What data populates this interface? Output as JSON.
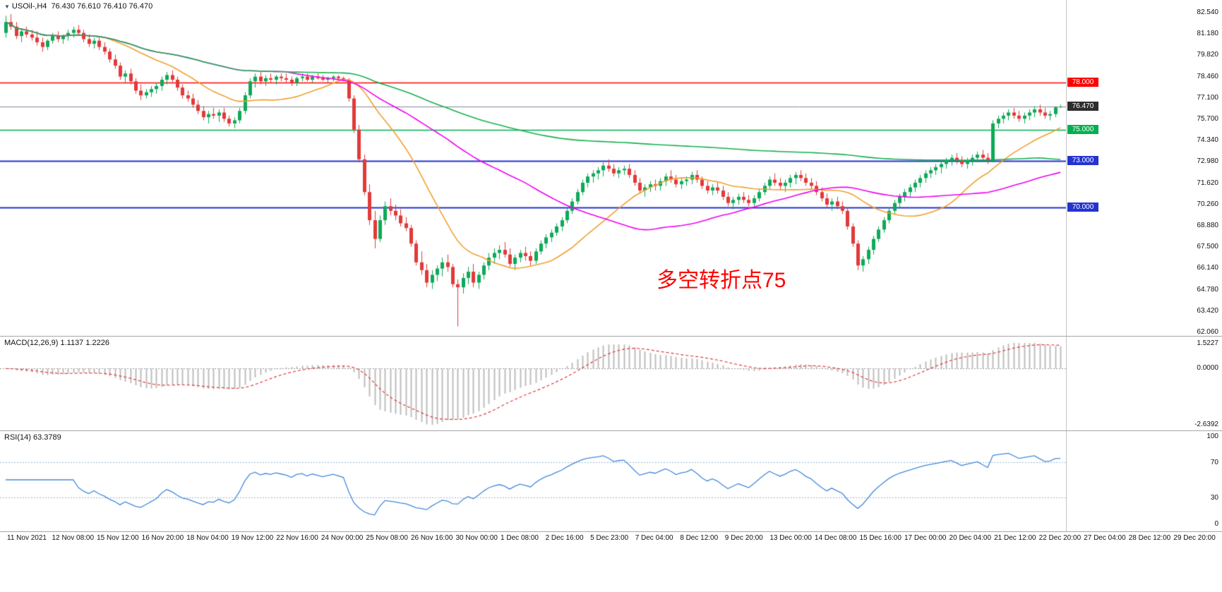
{
  "header": {
    "symbol": "USOil-,H4",
    "ohlc": "76.430 76.610 76.410 76.470"
  },
  "colors": {
    "background": "#ffffff",
    "bull": "#0fa958",
    "bear": "#e23a3a",
    "macd_hist": "#bdbdbd",
    "macd_signal": "#e03a3a",
    "rsi_line": "#4289d9",
    "bid_line": "#7d8b97",
    "axis_text": "#111111",
    "separator": "#a6a6a6"
  },
  "chart_data": {
    "type": "candlestick",
    "title": "USOil-,H4",
    "symbol": "USOil-",
    "timeframe": "H4",
    "current_ohlc": {
      "open": "76.430",
      "high": "76.610",
      "low": "76.410",
      "close": "76.470"
    },
    "y_axis": {
      "top_value": 82.54,
      "bottom_value": 62.06,
      "labels": [
        "82.540",
        "81.180",
        "79.820",
        "78.460",
        "77.100",
        "75.700",
        "74.340",
        "72.980",
        "71.620",
        "70.260",
        "68.880",
        "67.500",
        "66.140",
        "64.780",
        "63.420",
        "62.060"
      ]
    },
    "x_axis": {
      "labels": [
        "11 Nov 2021",
        "12 Nov 08:00",
        "15 Nov 12:00",
        "16 Nov 20:00",
        "18 Nov 04:00",
        "19 Nov 12:00",
        "22 Nov 16:00",
        "24 Nov 00:00",
        "25 Nov 08:00",
        "26 Nov 16:00",
        "30 Nov 00:00",
        "1 Dec 08:00",
        "2 Dec 16:00",
        "5 Dec 23:00",
        "7 Dec 04:00",
        "8 Dec 12:00",
        "9 Dec 20:00",
        "13 Dec 00:00",
        "14 Dec 08:00",
        "15 Dec 16:00",
        "17 Dec 00:00",
        "20 Dec 04:00",
        "21 Dec 12:00",
        "22 Dec 20:00",
        "27 Dec 04:00",
        "28 Dec 12:00",
        "29 Dec 20:00"
      ]
    },
    "horizontal_levels": [
      {
        "price": 78.0,
        "label": "78.000",
        "color": "#ff0000",
        "width": 1.6
      },
      {
        "price": 75.0,
        "label": "75.000",
        "color": "#00b050",
        "width": 1.6
      },
      {
        "price": 73.0,
        "label": "73.000",
        "color": "#2433cf",
        "width": 1.8
      },
      {
        "price": 70.0,
        "label": "70.000",
        "color": "#2433cf",
        "width": 1.8
      }
    ],
    "bid_line": {
      "price": 76.47,
      "label": "76.470",
      "color": "#7d8b97",
      "badge_color": "#2d2d2d"
    },
    "moving_averages": [
      {
        "period": 20,
        "color": "#f0a030",
        "name": "fast-ma-orange"
      },
      {
        "period": 55,
        "color": "#f000f0",
        "name": "mid-ma-magenta"
      },
      {
        "period": 200,
        "color": "#17b04f",
        "name": "slow-ma-green"
      }
    ],
    "indicators": {
      "macd": {
        "label_text": "MACD(12,26,9) 1.1137 1.2226",
        "fast": 12,
        "slow": 26,
        "signal": 9,
        "values": "1.1137 1.2226",
        "axis_labels": [
          "1.5227",
          "0.0000",
          "-2.6392"
        ]
      },
      "rsi": {
        "label_text": "RSI(14) 63.3789",
        "period": 14,
        "value": "63.3789",
        "axis_labels": [
          "100",
          "70",
          "30",
          "0"
        ],
        "levels": [
          70,
          30
        ]
      }
    },
    "annotation": {
      "text": "多空转折点75",
      "color": "#ff0000"
    },
    "candles": [
      [
        81.2,
        82.3,
        80.9,
        81.9
      ],
      [
        81.9,
        82.4,
        81.4,
        81.6
      ],
      [
        81.6,
        81.9,
        80.8,
        81.0
      ],
      [
        81.0,
        81.5,
        80.6,
        81.3
      ],
      [
        81.3,
        81.6,
        80.9,
        81.1
      ],
      [
        81.1,
        81.4,
        80.7,
        80.9
      ],
      [
        80.9,
        81.3,
        80.4,
        80.6
      ],
      [
        80.6,
        80.9,
        80.0,
        80.3
      ],
      [
        80.3,
        80.8,
        80.1,
        80.7
      ],
      [
        80.7,
        81.2,
        80.5,
        81.0
      ],
      [
        81.0,
        81.3,
        80.6,
        80.8
      ],
      [
        80.8,
        81.1,
        80.5,
        81.0
      ],
      [
        81.0,
        81.4,
        80.7,
        81.2
      ],
      [
        81.2,
        81.6,
        80.9,
        81.4
      ],
      [
        81.4,
        81.7,
        81.0,
        81.2
      ],
      [
        81.2,
        81.4,
        80.6,
        80.8
      ],
      [
        80.8,
        81.1,
        80.3,
        80.5
      ],
      [
        80.5,
        80.9,
        80.2,
        80.7
      ],
      [
        80.7,
        80.9,
        80.1,
        80.3
      ],
      [
        80.3,
        80.6,
        79.8,
        80.0
      ],
      [
        80.0,
        80.2,
        79.3,
        79.5
      ],
      [
        79.5,
        79.8,
        78.9,
        79.1
      ],
      [
        79.1,
        79.3,
        78.2,
        78.4
      ],
      [
        78.4,
        78.8,
        78.0,
        78.6
      ],
      [
        78.6,
        78.9,
        77.9,
        78.1
      ],
      [
        78.1,
        78.3,
        77.3,
        77.5
      ],
      [
        77.5,
        77.9,
        76.9,
        77.2
      ],
      [
        77.2,
        77.6,
        77.0,
        77.4
      ],
      [
        77.4,
        77.8,
        77.1,
        77.6
      ],
      [
        77.6,
        78.0,
        77.3,
        77.8
      ],
      [
        77.8,
        78.4,
        77.5,
        78.2
      ],
      [
        78.2,
        78.7,
        77.9,
        78.5
      ],
      [
        78.5,
        78.8,
        78.0,
        78.2
      ],
      [
        78.2,
        78.4,
        77.5,
        77.7
      ],
      [
        77.7,
        77.9,
        77.0,
        77.2
      ],
      [
        77.2,
        77.5,
        76.8,
        77.0
      ],
      [
        77.0,
        77.3,
        76.4,
        76.6
      ],
      [
        76.6,
        76.9,
        76.0,
        76.2
      ],
      [
        76.2,
        76.5,
        75.6,
        75.8
      ],
      [
        75.8,
        76.2,
        75.4,
        76.0
      ],
      [
        76.0,
        76.4,
        75.7,
        75.9
      ],
      [
        75.9,
        76.3,
        75.5,
        76.1
      ],
      [
        76.1,
        76.4,
        75.5,
        75.7
      ],
      [
        75.7,
        75.9,
        75.2,
        75.4
      ],
      [
        75.4,
        75.8,
        75.1,
        75.6
      ],
      [
        75.6,
        76.4,
        75.4,
        76.2
      ],
      [
        76.2,
        77.4,
        76.0,
        77.2
      ],
      [
        77.2,
        78.3,
        77.0,
        78.1
      ],
      [
        78.1,
        78.6,
        77.7,
        78.4
      ],
      [
        78.4,
        78.7,
        77.9,
        78.1
      ],
      [
        78.1,
        78.5,
        77.8,
        78.3
      ],
      [
        78.3,
        78.6,
        78.0,
        78.2
      ],
      [
        78.2,
        78.5,
        77.9,
        78.4
      ],
      [
        78.4,
        78.6,
        78.1,
        78.3
      ],
      [
        78.3,
        78.6,
        78.0,
        78.2
      ],
      [
        78.2,
        78.4,
        77.8,
        78.0
      ],
      [
        78.0,
        78.4,
        77.8,
        78.3
      ],
      [
        78.3,
        78.6,
        78.1,
        78.4
      ],
      [
        78.4,
        78.6,
        78.1,
        78.2
      ],
      [
        78.2,
        78.5,
        78.0,
        78.4
      ],
      [
        78.4,
        78.6,
        78.2,
        78.3
      ],
      [
        78.3,
        78.5,
        78.1,
        78.2
      ],
      [
        78.2,
        78.4,
        78.0,
        78.3
      ],
      [
        78.3,
        78.5,
        78.1,
        78.4
      ],
      [
        78.4,
        78.5,
        78.2,
        78.3
      ],
      [
        78.3,
        78.4,
        78.1,
        78.2
      ],
      [
        78.2,
        78.3,
        76.8,
        77.0
      ],
      [
        77.0,
        77.2,
        74.8,
        75.0
      ],
      [
        75.0,
        75.3,
        72.9,
        73.1
      ],
      [
        73.1,
        73.4,
        70.8,
        71.0
      ],
      [
        71.0,
        71.5,
        68.9,
        69.2
      ],
      [
        69.2,
        69.8,
        67.4,
        68.0
      ],
      [
        68.0,
        69.5,
        67.8,
        69.2
      ],
      [
        69.2,
        70.4,
        68.9,
        70.1
      ],
      [
        70.1,
        70.6,
        69.5,
        69.8
      ],
      [
        69.8,
        70.2,
        69.2,
        69.5
      ],
      [
        69.5,
        69.9,
        68.8,
        69.0
      ],
      [
        69.0,
        69.4,
        68.5,
        68.7
      ],
      [
        68.7,
        68.9,
        67.5,
        67.7
      ],
      [
        67.7,
        67.9,
        66.3,
        66.5
      ],
      [
        66.5,
        67.2,
        65.7,
        66.0
      ],
      [
        66.0,
        66.4,
        64.9,
        65.2
      ],
      [
        65.2,
        66.0,
        64.8,
        65.7
      ],
      [
        65.7,
        66.3,
        65.3,
        66.1
      ],
      [
        66.1,
        66.8,
        65.6,
        66.5
      ],
      [
        66.5,
        67.0,
        65.9,
        66.2
      ],
      [
        66.2,
        66.4,
        64.9,
        65.1
      ],
      [
        65.1,
        65.4,
        62.4,
        64.9
      ],
      [
        64.9,
        65.8,
        64.5,
        65.5
      ],
      [
        65.5,
        66.2,
        65.1,
        65.9
      ],
      [
        65.9,
        66.4,
        64.9,
        65.2
      ],
      [
        65.2,
        65.9,
        64.8,
        65.7
      ],
      [
        65.7,
        66.5,
        65.4,
        66.3
      ],
      [
        66.3,
        67.1,
        66.0,
        66.8
      ],
      [
        66.8,
        67.4,
        66.4,
        67.1
      ],
      [
        67.1,
        67.6,
        66.7,
        67.3
      ],
      [
        67.3,
        67.8,
        66.8,
        67.0
      ],
      [
        67.0,
        67.4,
        66.2,
        66.4
      ],
      [
        66.4,
        67.0,
        66.0,
        66.8
      ],
      [
        66.8,
        67.3,
        66.5,
        67.1
      ],
      [
        67.1,
        67.5,
        66.6,
        66.9
      ],
      [
        66.9,
        67.2,
        66.3,
        66.6
      ],
      [
        66.6,
        67.4,
        66.4,
        67.2
      ],
      [
        67.2,
        67.9,
        67.0,
        67.7
      ],
      [
        67.7,
        68.3,
        67.4,
        68.1
      ],
      [
        68.1,
        68.6,
        67.8,
        68.4
      ],
      [
        68.4,
        69.0,
        68.2,
        68.8
      ],
      [
        68.8,
        69.4,
        68.5,
        69.2
      ],
      [
        69.2,
        70.0,
        69.0,
        69.8
      ],
      [
        69.8,
        70.6,
        69.6,
        70.4
      ],
      [
        70.4,
        71.2,
        70.2,
        71.0
      ],
      [
        71.0,
        71.8,
        70.8,
        71.6
      ],
      [
        71.6,
        72.2,
        71.3,
        72.0
      ],
      [
        72.0,
        72.4,
        71.6,
        72.2
      ],
      [
        72.2,
        72.6,
        71.8,
        72.4
      ],
      [
        72.4,
        72.9,
        72.0,
        72.7
      ],
      [
        72.7,
        73.1,
        72.3,
        72.5
      ],
      [
        72.5,
        72.8,
        72.0,
        72.2
      ],
      [
        72.2,
        72.6,
        71.9,
        72.4
      ],
      [
        72.4,
        72.7,
        72.1,
        72.5
      ],
      [
        72.5,
        72.8,
        71.9,
        72.1
      ],
      [
        72.1,
        72.4,
        71.4,
        71.6
      ],
      [
        71.6,
        71.9,
        70.9,
        71.1
      ],
      [
        71.1,
        71.5,
        70.7,
        71.3
      ],
      [
        71.3,
        71.7,
        71.0,
        71.5
      ],
      [
        71.5,
        71.8,
        71.1,
        71.4
      ],
      [
        71.4,
        71.9,
        71.1,
        71.7
      ],
      [
        71.7,
        72.2,
        71.4,
        72.0
      ],
      [
        72.0,
        72.4,
        71.6,
        71.8
      ],
      [
        71.8,
        72.1,
        71.3,
        71.5
      ],
      [
        71.5,
        71.9,
        71.2,
        71.7
      ],
      [
        71.7,
        72.0,
        71.4,
        71.8
      ],
      [
        71.8,
        72.3,
        71.5,
        72.1
      ],
      [
        72.1,
        72.4,
        71.6,
        71.8
      ],
      [
        71.8,
        72.0,
        71.2,
        71.4
      ],
      [
        71.4,
        71.7,
        70.9,
        71.1
      ],
      [
        71.1,
        71.5,
        70.8,
        71.3
      ],
      [
        71.3,
        71.6,
        70.9,
        71.1
      ],
      [
        71.1,
        71.4,
        70.5,
        70.7
      ],
      [
        70.7,
        71.0,
        70.1,
        70.3
      ],
      [
        70.3,
        70.7,
        69.9,
        70.5
      ],
      [
        70.5,
        70.9,
        70.2,
        70.7
      ],
      [
        70.7,
        71.0,
        70.3,
        70.5
      ],
      [
        70.5,
        70.8,
        70.1,
        70.3
      ],
      [
        70.3,
        70.8,
        70.0,
        70.6
      ],
      [
        70.6,
        71.2,
        70.4,
        71.0
      ],
      [
        71.0,
        71.6,
        70.8,
        71.4
      ],
      [
        71.4,
        72.0,
        71.2,
        71.8
      ],
      [
        71.8,
        72.2,
        71.4,
        71.6
      ],
      [
        71.6,
        71.9,
        71.2,
        71.4
      ],
      [
        71.4,
        71.8,
        71.0,
        71.6
      ],
      [
        71.6,
        72.1,
        71.3,
        71.9
      ],
      [
        71.9,
        72.3,
        71.5,
        72.1
      ],
      [
        72.1,
        72.4,
        71.7,
        71.9
      ],
      [
        71.9,
        72.2,
        71.4,
        71.6
      ],
      [
        71.6,
        71.9,
        71.2,
        71.4
      ],
      [
        71.4,
        71.7,
        70.8,
        71.0
      ],
      [
        71.0,
        71.3,
        70.4,
        70.6
      ],
      [
        70.6,
        70.9,
        70.0,
        70.2
      ],
      [
        70.2,
        70.6,
        69.8,
        70.4
      ],
      [
        70.4,
        70.7,
        69.9,
        70.1
      ],
      [
        70.1,
        70.4,
        69.6,
        69.8
      ],
      [
        69.8,
        70.0,
        68.6,
        68.8
      ],
      [
        68.8,
        69.0,
        67.5,
        67.7
      ],
      [
        67.7,
        67.9,
        66.0,
        66.3
      ],
      [
        66.3,
        66.9,
        65.9,
        66.7
      ],
      [
        66.7,
        67.5,
        66.4,
        67.3
      ],
      [
        67.3,
        68.2,
        67.0,
        68.0
      ],
      [
        68.0,
        68.8,
        67.8,
        68.6
      ],
      [
        68.6,
        69.4,
        68.4,
        69.2
      ],
      [
        69.2,
        70.0,
        69.0,
        69.8
      ],
      [
        69.8,
        70.5,
        69.6,
        70.3
      ],
      [
        70.3,
        70.9,
        70.0,
        70.7
      ],
      [
        70.7,
        71.2,
        70.4,
        71.0
      ],
      [
        71.0,
        71.5,
        70.7,
        71.3
      ],
      [
        71.3,
        71.8,
        71.0,
        71.6
      ],
      [
        71.6,
        72.1,
        71.3,
        71.9
      ],
      [
        71.9,
        72.4,
        71.6,
        72.2
      ],
      [
        72.2,
        72.6,
        71.9,
        72.4
      ],
      [
        72.4,
        72.8,
        72.1,
        72.6
      ],
      [
        72.6,
        73.0,
        72.2,
        72.8
      ],
      [
        72.8,
        73.2,
        72.5,
        73.0
      ],
      [
        73.0,
        73.4,
        72.7,
        73.2
      ],
      [
        73.2,
        73.5,
        72.8,
        73.0
      ],
      [
        73.0,
        73.3,
        72.6,
        72.8
      ],
      [
        72.8,
        73.2,
        72.5,
        73.0
      ],
      [
        73.0,
        73.4,
        72.7,
        73.2
      ],
      [
        73.2,
        73.6,
        72.9,
        73.4
      ],
      [
        73.4,
        73.7,
        73.0,
        73.2
      ],
      [
        73.2,
        73.5,
        72.8,
        73.0
      ],
      [
        73.0,
        75.6,
        72.9,
        75.4
      ],
      [
        75.4,
        75.9,
        75.1,
        75.7
      ],
      [
        75.7,
        76.1,
        75.4,
        75.9
      ],
      [
        75.9,
        76.3,
        75.6,
        76.1
      ],
      [
        76.1,
        76.4,
        75.7,
        75.9
      ],
      [
        75.9,
        76.2,
        75.5,
        75.7
      ],
      [
        75.7,
        76.1,
        75.4,
        75.9
      ],
      [
        75.9,
        76.3,
        75.6,
        76.1
      ],
      [
        76.1,
        76.5,
        75.8,
        76.3
      ],
      [
        76.3,
        76.6,
        75.9,
        76.1
      ],
      [
        76.1,
        76.4,
        75.7,
        75.9
      ],
      [
        75.9,
        76.2,
        75.6,
        76.0
      ],
      [
        76.0,
        76.5,
        75.8,
        76.43
      ],
      [
        76.43,
        76.61,
        76.41,
        76.47
      ]
    ]
  }
}
